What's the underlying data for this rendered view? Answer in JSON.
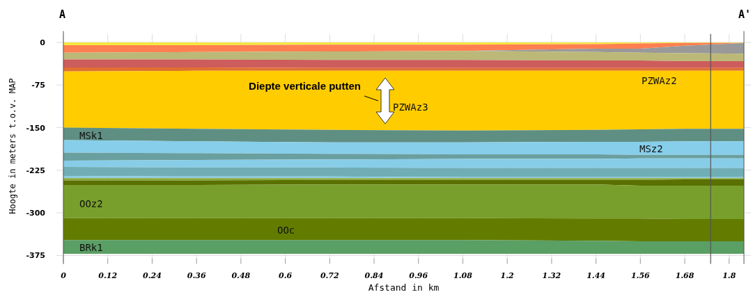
{
  "chart_data": {
    "type": "area",
    "stacked": true,
    "xlabel": "Afstand in km",
    "ylabel": "Hoogte in meters t.o.v. MAP",
    "x": [
      0,
      0.36,
      0.72,
      1.08,
      1.44,
      1.56,
      1.68,
      1.84
    ],
    "xlim": [
      0,
      1.84
    ],
    "ylim": [
      -380,
      15
    ],
    "xticks": [
      0,
      0.12,
      0.24,
      0.36,
      0.48,
      0.6,
      0.72,
      0.84,
      0.96,
      1.08,
      1.2,
      1.32,
      1.44,
      1.56,
      1.68,
      1.8
    ],
    "yticks": [
      0,
      -75,
      -150,
      -225,
      -300,
      -375
    ],
    "grid": true,
    "series": [
      {
        "color": "#f5e642",
        "values": [
          -5,
          -5,
          -4,
          -4,
          -3,
          -2,
          -1,
          -1
        ]
      },
      {
        "color": "#ff7f50",
        "values": [
          -13,
          -12,
          -12,
          -11,
          -8,
          -9,
          -5,
          0
        ]
      },
      {
        "color": "#999999",
        "values": [
          0,
          0,
          0,
          0,
          -6,
          -7,
          -13,
          -19
        ]
      },
      {
        "color": "#bcb878",
        "values": [
          -12,
          -13,
          -15,
          -16,
          -15,
          -14,
          -14,
          -13
        ]
      },
      {
        "color": "#cd5c5c",
        "values": [
          -14,
          -14,
          -14,
          -14,
          -13,
          -13,
          -12,
          -12
        ]
      },
      {
        "color": "#e07030",
        "values": [
          -7,
          -6,
          -5,
          -5,
          -5,
          -5,
          -5,
          -5
        ]
      },
      {
        "color": "#ffcc00",
        "values": [
          -99,
          -102,
          -104,
          -105,
          -104,
          -103,
          -102,
          -102
        ]
      },
      {
        "color": "#5f8f82",
        "values": [
          -22,
          -22,
          -22,
          -21,
          -21,
          -22,
          -22,
          -22
        ]
      },
      {
        "color": "#87ceeb",
        "values": [
          -22,
          -21,
          -20,
          -21,
          -22,
          -23,
          -24,
          -24
        ]
      },
      {
        "color": "#6a9f9f",
        "values": [
          -14,
          -12,
          -10,
          -8,
          -8,
          -6,
          -6,
          -6
        ]
      },
      {
        "color": "#88cde8",
        "values": [
          -11,
          -13,
          -14,
          -16,
          -16,
          -17,
          -17,
          -17
        ]
      },
      {
        "color": "#70aeb5",
        "values": [
          -16,
          -16,
          -16,
          -16,
          -16,
          -16,
          -16,
          -16
        ]
      },
      {
        "color": "#8ccbe0",
        "values": [
          -4,
          -3,
          -3,
          -2,
          -2,
          -2,
          -2,
          -2
        ]
      },
      {
        "color": "#8aa83a",
        "values": [
          -4,
          -4,
          -3,
          -3,
          -3,
          -3,
          -2,
          -2
        ]
      },
      {
        "color": "#5a7000",
        "values": [
          -8,
          -8,
          -8,
          -8,
          -8,
          -10,
          -11,
          -11
        ]
      },
      {
        "color": "#789f2c",
        "values": [
          -58,
          -58,
          -59,
          -59,
          -60,
          -58,
          -59,
          -59
        ]
      },
      {
        "color": "#637c00",
        "values": [
          -39,
          -39,
          -39,
          -39,
          -39,
          -40,
          -39,
          -39
        ]
      },
      {
        "color": "#5a9f64",
        "values": [
          -24,
          -24,
          -24,
          -24,
          -23,
          -22,
          -22,
          -22
        ]
      }
    ],
    "ref_lines": [
      {
        "axis": "x",
        "value": 1.75,
        "color": "#555555"
      }
    ],
    "annotations": [
      "A",
      "A'",
      "Diepte verticale putten",
      "PZWAz3",
      "PZWAz2",
      "MSk1",
      "MSz2",
      "OOz2",
      "OOc",
      "BRk1"
    ]
  }
}
